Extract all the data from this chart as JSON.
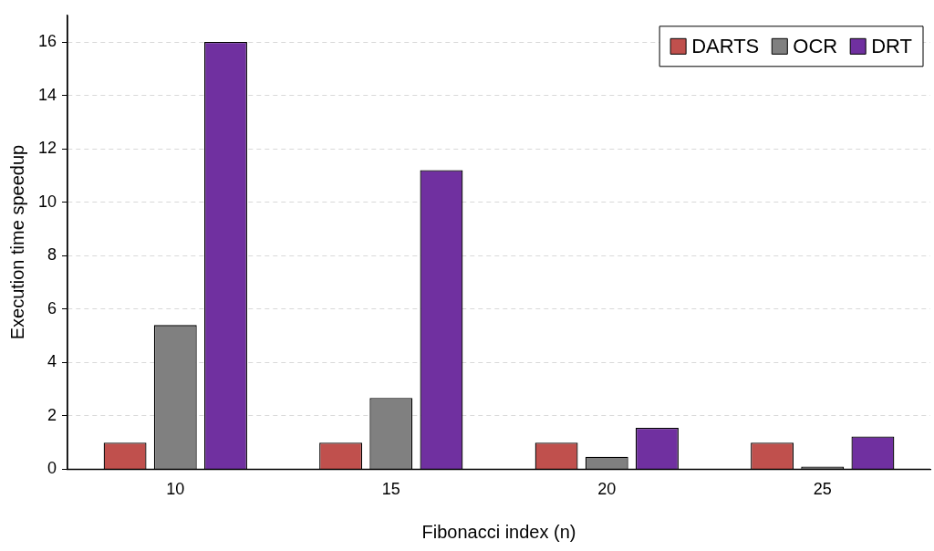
{
  "chart_data": {
    "type": "bar",
    "xlabel": "Fibonacci index (n)",
    "ylabel": "Execution time speedup",
    "categories": [
      "10",
      "15",
      "20",
      "25"
    ],
    "series": [
      {
        "name": "DARTS",
        "color": "#c0504d",
        "values": [
          1,
          1,
          1,
          1
        ]
      },
      {
        "name": "OCR",
        "color": "#808080",
        "values": [
          5.4,
          2.67,
          0.47,
          0.1
        ]
      },
      {
        "name": "DRT",
        "color": "#7030a0",
        "values": [
          16,
          11.2,
          1.55,
          1.23
        ]
      }
    ],
    "ylim": [
      0,
      17
    ],
    "yticks": [
      0,
      2,
      4,
      6,
      8,
      10,
      12,
      14,
      16
    ],
    "grid": "y",
    "legend": "top right"
  }
}
